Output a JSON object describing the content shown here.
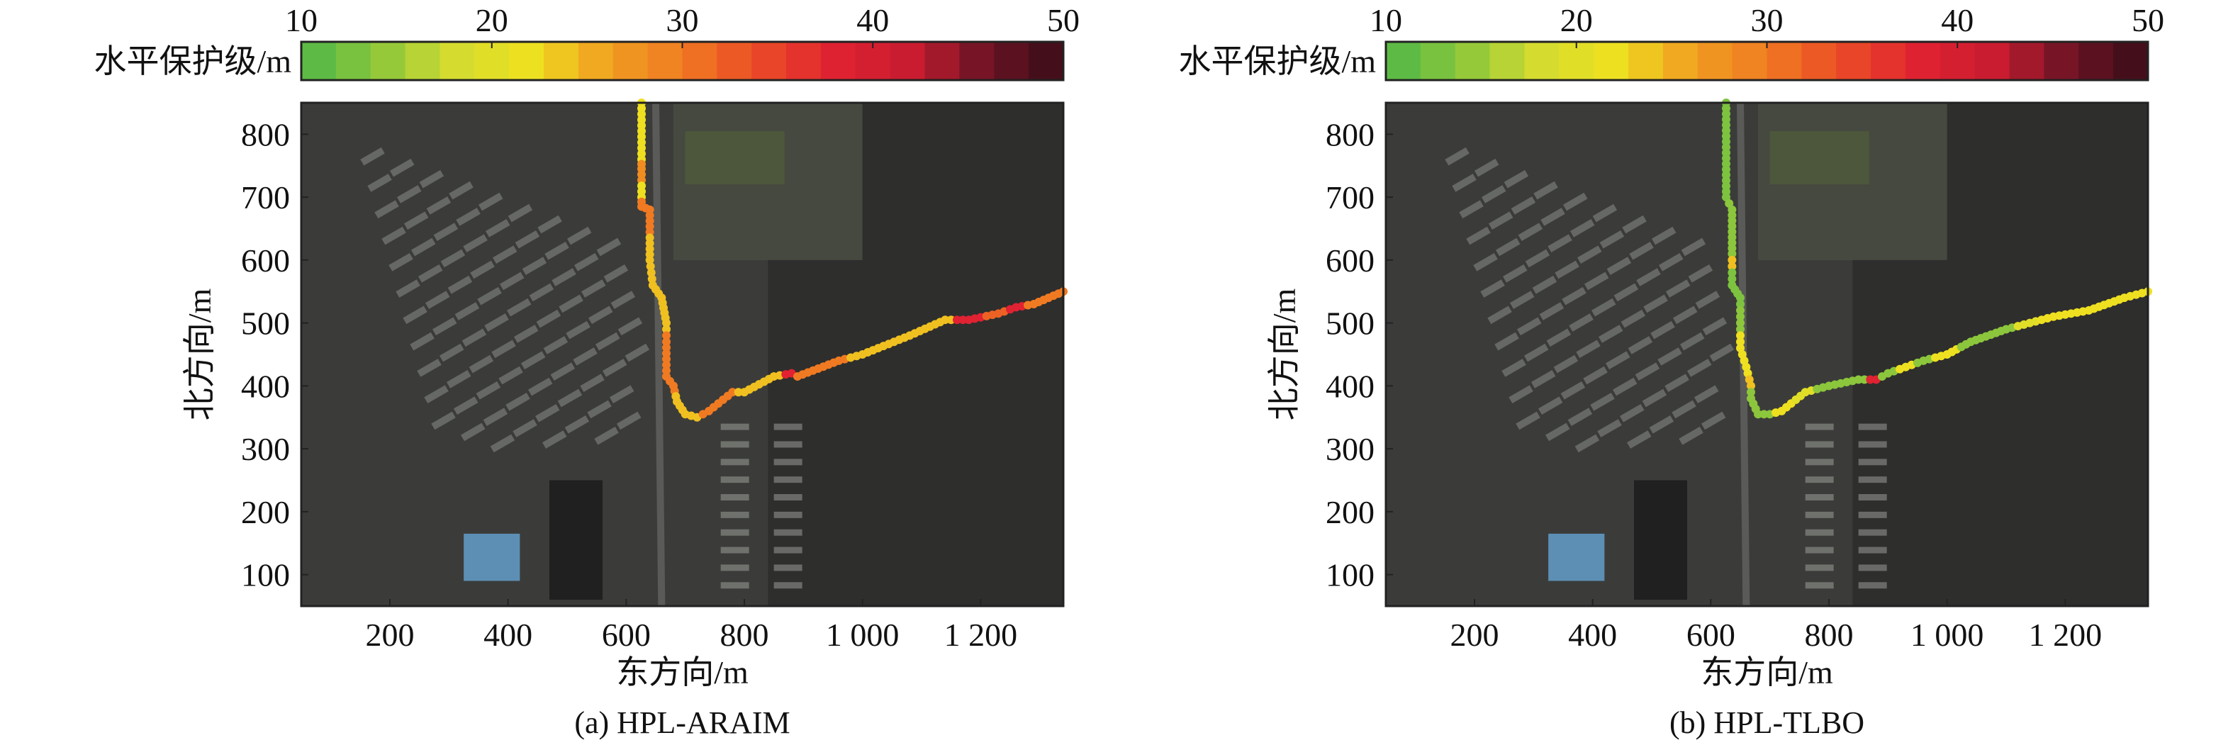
{
  "colorbar": {
    "label": "水平保护级/m",
    "range": [
      10,
      50
    ],
    "ticks": [
      "10",
      "20",
      "30",
      "40",
      "50"
    ],
    "colormap": [
      "#4fb848",
      "#8cc63c",
      "#d4dc30",
      "#eee020",
      "#f0a020",
      "#f07a22",
      "#ea4a26",
      "#e02232",
      "#c81c30",
      "#6a1424",
      "#3a0c18"
    ]
  },
  "chart_data": [
    {
      "type": "scatter",
      "title": "(a) HPL-ARAIM",
      "xlabel": "东方向/m",
      "ylabel": "北方向/m",
      "xlim": [
        50,
        1340
      ],
      "ylim": [
        50,
        850
      ],
      "xticks": [
        200,
        400,
        600,
        800,
        1000,
        1200
      ],
      "xtick_labels": [
        "200",
        "400",
        "600",
        "800",
        "1 000",
        "1 200"
      ],
      "yticks": [
        100,
        200,
        300,
        400,
        500,
        600,
        700,
        800
      ],
      "ytick_labels": [
        "100",
        "200",
        "300",
        "400",
        "500",
        "600",
        "700",
        "800"
      ],
      "background": "satellite-image",
      "points": [
        [
          626,
          850,
          22
        ],
        [
          626,
          760,
          22
        ],
        [
          626,
          745,
          28
        ],
        [
          626,
          700,
          22
        ],
        [
          626,
          685,
          30
        ],
        [
          640,
          680,
          30
        ],
        [
          640,
          600,
          24
        ],
        [
          645,
          560,
          24
        ],
        [
          660,
          540,
          24
        ],
        [
          668,
          500,
          24
        ],
        [
          668,
          470,
          30
        ],
        [
          668,
          415,
          30
        ],
        [
          680,
          400,
          30
        ],
        [
          686,
          375,
          24
        ],
        [
          700,
          355,
          24
        ],
        [
          720,
          350,
          24
        ],
        [
          740,
          360,
          30
        ],
        [
          780,
          390,
          30
        ],
        [
          800,
          390,
          24
        ],
        [
          850,
          415,
          24
        ],
        [
          880,
          420,
          38
        ],
        [
          890,
          415,
          30
        ],
        [
          960,
          440,
          30
        ],
        [
          1000,
          450,
          24
        ],
        [
          1080,
          480,
          24
        ],
        [
          1140,
          505,
          24
        ],
        [
          1180,
          505,
          38
        ],
        [
          1230,
          515,
          32
        ],
        [
          1260,
          525,
          38
        ],
        [
          1290,
          530,
          30
        ],
        [
          1340,
          550,
          30
        ]
      ]
    },
    {
      "type": "scatter",
      "title": "(b) HPL-TLBO",
      "xlabel": "东方向/m",
      "ylabel": "北方向/m",
      "xlim": [
        50,
        1340
      ],
      "ylim": [
        50,
        850
      ],
      "xticks": [
        200,
        400,
        600,
        800,
        1000,
        1200
      ],
      "xtick_labels": [
        "200",
        "400",
        "600",
        "800",
        "1 000",
        "1 200"
      ],
      "yticks": [
        100,
        200,
        300,
        400,
        500,
        600,
        700,
        800
      ],
      "ytick_labels": [
        "100",
        "200",
        "300",
        "400",
        "500",
        "600",
        "700",
        "800"
      ],
      "background": "satellite-image",
      "points": [
        [
          626,
          850,
          13
        ],
        [
          626,
          700,
          13
        ],
        [
          636,
          680,
          14
        ],
        [
          636,
          610,
          14
        ],
        [
          636,
          600,
          24
        ],
        [
          636,
          560,
          13
        ],
        [
          650,
          540,
          13
        ],
        [
          650,
          500,
          14
        ],
        [
          650,
          460,
          22
        ],
        [
          660,
          430,
          22
        ],
        [
          668,
          400,
          24
        ],
        [
          668,
          380,
          14
        ],
        [
          680,
          355,
          14
        ],
        [
          700,
          355,
          14
        ],
        [
          720,
          360,
          22
        ],
        [
          760,
          390,
          20
        ],
        [
          800,
          400,
          14
        ],
        [
          850,
          410,
          14
        ],
        [
          880,
          410,
          38
        ],
        [
          900,
          420,
          14
        ],
        [
          930,
          430,
          22
        ],
        [
          960,
          440,
          14
        ],
        [
          1000,
          450,
          22
        ],
        [
          1040,
          470,
          14
        ],
        [
          1100,
          490,
          14
        ],
        [
          1140,
          500,
          20
        ],
        [
          1180,
          510,
          22
        ],
        [
          1240,
          520,
          22
        ],
        [
          1300,
          540,
          22
        ],
        [
          1340,
          550,
          22
        ]
      ]
    }
  ]
}
